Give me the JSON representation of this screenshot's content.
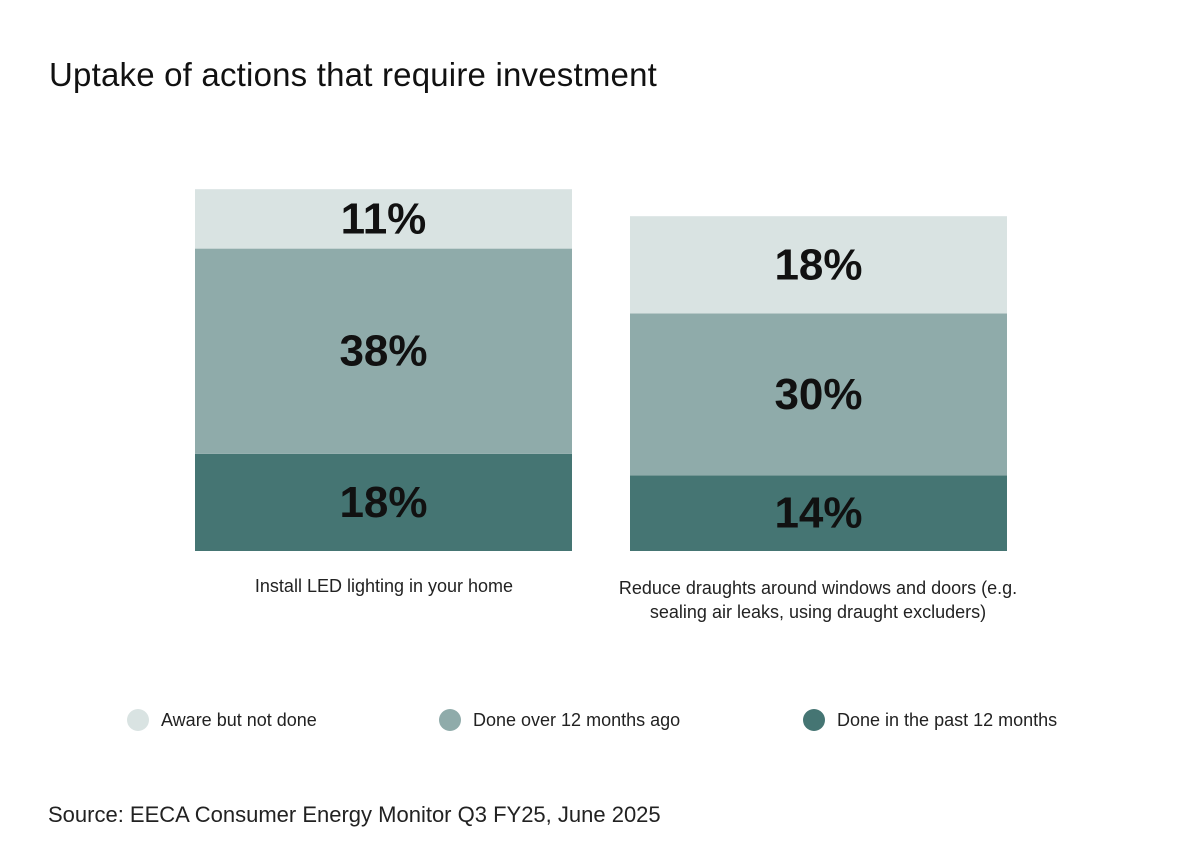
{
  "chart_data": {
    "type": "bar",
    "stacked": true,
    "title": "Uptake of actions that require investment",
    "categories": [
      "Install LED lighting in your home",
      "Reduce draughts around windows and doors (e.g. sealing air leaks, using draught excluders)"
    ],
    "series": [
      {
        "name": "Done in the past 12 months",
        "color": "#457573",
        "values": [
          18,
          14
        ],
        "labels": [
          "18%",
          "14%"
        ]
      },
      {
        "name": "Done over 12 months ago",
        "color": "#8fabaa",
        "values": [
          38,
          30
        ],
        "labels": [
          "38%",
          "30%"
        ]
      },
      {
        "name": "Aware but not done",
        "color": "#d9e3e2",
        "values": [
          11,
          18
        ],
        "labels": [
          "11%",
          "18%"
        ]
      }
    ],
    "unit": "%",
    "ylim": [
      0,
      67
    ],
    "grid": false,
    "legend_position": "bottom",
    "xlabel": "",
    "ylabel": ""
  },
  "legend": [
    {
      "label": "Aware but not done",
      "color": "#d9e3e2"
    },
    {
      "label": "Done over 12 months ago",
      "color": "#8fabaa"
    },
    {
      "label": "Done in the past 12 months",
      "color": "#457573"
    }
  ],
  "source": "Source: EECA Consumer Energy Monitor Q3 FY25, June 2025"
}
